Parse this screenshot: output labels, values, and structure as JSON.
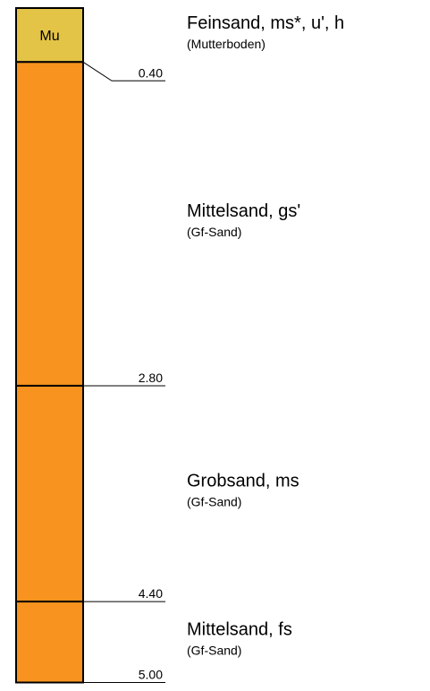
{
  "layers": [
    {
      "code": "Mu",
      "name": "Feinsand, ms*, u', h",
      "note": "(Mutterboden)",
      "bottom": {
        "value": 0.4,
        "label": "0.40"
      },
      "color": "#e3c447"
    },
    {
      "name": "Mittelsand, gs'",
      "note": "(Gf-Sand)",
      "bottom": {
        "value": 2.8,
        "label": "2.80"
      },
      "color": "#f7931e"
    },
    {
      "name": "Grobsand, ms",
      "note": "(Gf-Sand)",
      "bottom": {
        "value": 4.4,
        "label": "4.40"
      },
      "color": "#f7931e"
    },
    {
      "name": "Mittelsand, fs",
      "note": "(Gf-Sand)",
      "bottom": {
        "value": 5.0,
        "label": "5.00"
      },
      "color": "#f7931e"
    }
  ]
}
